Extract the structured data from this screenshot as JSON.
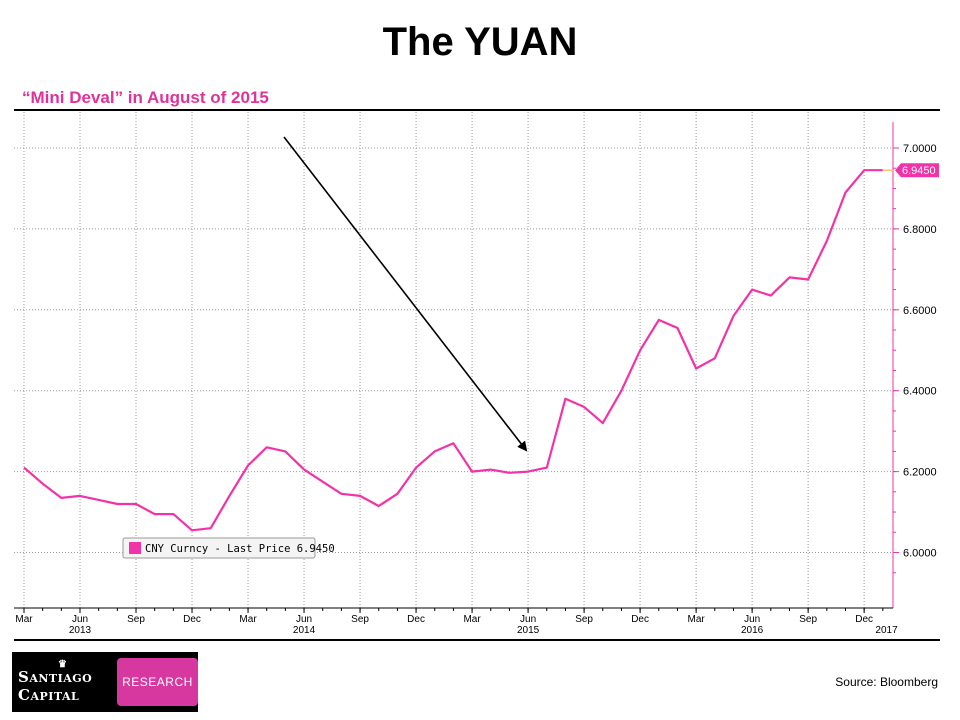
{
  "slide": {
    "title": "The YUAN",
    "subtitle": "“Mini Deval” in August of 2015",
    "source": "Source: Bloomberg"
  },
  "logo": {
    "line1": "Santiago",
    "line2": "Capital",
    "badge": "RESEARCH",
    "crown_icon": "crown-icon"
  },
  "colors": {
    "series": "#f233a8",
    "last_price_line": "#f5c27a",
    "subtitle": "#e0339a",
    "grid": "#9a9a9a",
    "arrow": "#000000"
  },
  "chart_data": {
    "type": "line",
    "title": "",
    "xlabel": "",
    "ylabel": "",
    "ylim": [
      5.9,
      7.05
    ],
    "y_ticks": [
      "6.0000",
      "6.2000",
      "6.4000",
      "6.6000",
      "6.8000",
      "7.0000"
    ],
    "x_ticks": [
      "Mar",
      "Jun",
      "Sep",
      "Dec",
      "Mar",
      "Jun",
      "Sep",
      "Dec",
      "Mar",
      "Jun",
      "Sep",
      "Dec",
      "Mar",
      "Jun",
      "Sep",
      "Dec"
    ],
    "x_years": [
      "2013",
      "2014",
      "2015",
      "2016",
      "2017"
    ],
    "grid": true,
    "legend": {
      "placement": "lower-left",
      "label": "CNY Curncy - Last Price 6.9450"
    },
    "last_price_label": "6.9450",
    "annotation": "arrow pointing to August 2015 devaluation",
    "series": [
      {
        "name": "CNY Curncy - Last Price",
        "x": [
          "2013-03",
          "2013-04",
          "2013-05",
          "2013-06",
          "2013-07",
          "2013-08",
          "2013-09",
          "2013-10",
          "2013-11",
          "2013-12",
          "2014-01",
          "2014-02",
          "2014-03",
          "2014-04",
          "2014-05",
          "2014-06",
          "2014-07",
          "2014-08",
          "2014-09",
          "2014-10",
          "2014-11",
          "2014-12",
          "2015-01",
          "2015-02",
          "2015-03",
          "2015-04",
          "2015-05",
          "2015-06",
          "2015-07",
          "2015-08",
          "2015-09",
          "2015-10",
          "2015-11",
          "2015-12",
          "2016-01",
          "2016-02",
          "2016-03",
          "2016-04",
          "2016-05",
          "2016-06",
          "2016-07",
          "2016-08",
          "2016-09",
          "2016-10",
          "2016-11",
          "2016-12",
          "2017-01"
        ],
        "values": [
          6.21,
          6.17,
          6.135,
          6.14,
          6.13,
          6.12,
          6.12,
          6.095,
          6.095,
          6.055,
          6.06,
          6.14,
          6.215,
          6.26,
          6.25,
          6.205,
          6.175,
          6.145,
          6.14,
          6.115,
          6.145,
          6.21,
          6.25,
          6.27,
          6.2,
          6.205,
          6.197,
          6.2,
          6.21,
          6.38,
          6.36,
          6.32,
          6.4,
          6.5,
          6.575,
          6.555,
          6.455,
          6.48,
          6.585,
          6.65,
          6.635,
          6.68,
          6.675,
          6.77,
          6.89,
          6.945,
          6.945
        ]
      }
    ]
  }
}
